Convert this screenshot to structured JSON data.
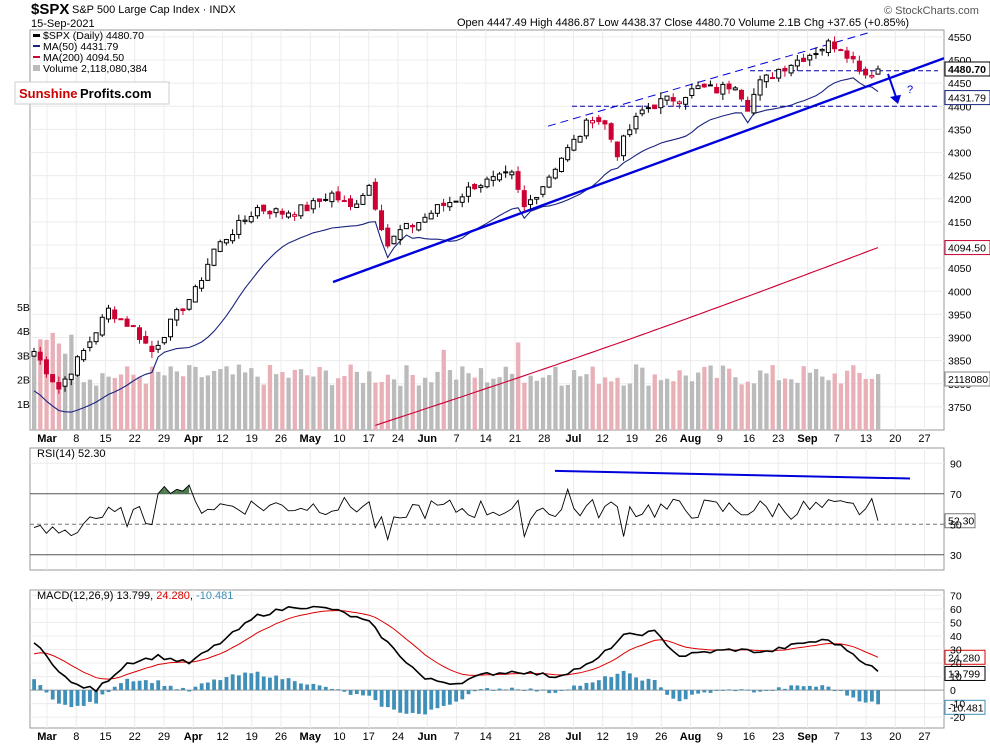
{
  "header": {
    "symbol": "$SPX",
    "name": "S&P 500 Large Cap Index",
    "exchange": "INDX",
    "date": "15-Sep-2021",
    "open_label": "Open",
    "open": "4447.49",
    "high_label": "High",
    "high": "4486.87",
    "low_label": "Low",
    "low": "4438.37",
    "close_label": "Close",
    "close": "4480.70",
    "volume_label": "Volume",
    "volume": "2.1B",
    "chg_label": "Chg",
    "chg": "+37.65 (+0.85%)",
    "source": "© StockCharts.com"
  },
  "legend": {
    "price": "$SPX (Daily) 4480.70",
    "ma50": "MA(50) 4431.79",
    "ma200": "MA(200) 4094.50",
    "volume": "Volume 2,118,080,384"
  },
  "logo": {
    "part1": "Sunshine",
    "part2": "Profits.com"
  },
  "colors": {
    "up": "#000000",
    "down": "#cc0033",
    "ma50": "#1a237e",
    "ma200": "#cc0033",
    "trend": "#0000dd",
    "vol_up": "#bbbbbb",
    "vol_down": "#eab0b8",
    "rsi_fill": "#4d7a4d",
    "macd_hist": "#3f8fb8",
    "signal": "#dd0000"
  },
  "chart_data": [
    {
      "type": "candlestick",
      "title": "$SPX S&P 500 Large Cap Index",
      "x_labels": [
        "Mar",
        "8",
        "15",
        "22",
        "29",
        "Apr",
        "12",
        "19",
        "26",
        "May",
        "10",
        "17",
        "24",
        "Jun",
        "7",
        "14",
        "21",
        "28",
        "Jul",
        "12",
        "19",
        "26",
        "Aug",
        "9",
        "16",
        "23",
        "Sep",
        "7",
        "13",
        "20",
        "27"
      ],
      "y_ticks": [
        3750,
        3800,
        3850,
        3900,
        3950,
        4000,
        4050,
        4100,
        4150,
        4200,
        4250,
        4300,
        4350,
        4400,
        4450,
        4500,
        4550
      ],
      "ylim": [
        3700,
        4565
      ],
      "volume_ticks": [
        "1B",
        "2B",
        "3B",
        "4B",
        "5B"
      ],
      "last_close": 4480.7,
      "ma50_last": 4431.79,
      "ma200_last": 4094.5,
      "volume_last": "2118080",
      "series": [
        {
          "name": "MA(50)",
          "values_approx": [
            3790,
            3840,
            3880,
            3940,
            3990,
            4040,
            4080,
            4110,
            4150,
            4180,
            4220,
            4260,
            4300,
            4350,
            4380,
            4410,
            4431.79
          ]
        },
        {
          "name": "MA(200)",
          "values_approx": [
            3700,
            3760,
            3820,
            3880,
            3940,
            3990,
            4040,
            4094.5
          ]
        }
      ],
      "annotations": [
        "?"
      ]
    },
    {
      "type": "line",
      "title": "RSI(14) 52.30",
      "y_ticks": [
        30,
        50,
        70,
        90
      ],
      "ylim": [
        20,
        100
      ],
      "last_value": 52.3
    },
    {
      "type": "line",
      "title": "MACD(12,26,9)",
      "macd": "13.799",
      "signal": "24.280",
      "hist": "-10.481",
      "y_ticks": [
        -20,
        -10,
        0,
        10,
        20,
        30,
        40,
        50,
        60,
        70
      ],
      "ylim": [
        -28,
        74
      ],
      "last_macd": 13.799,
      "last_signal": 24.28,
      "last_hist": -10.481
    }
  ]
}
